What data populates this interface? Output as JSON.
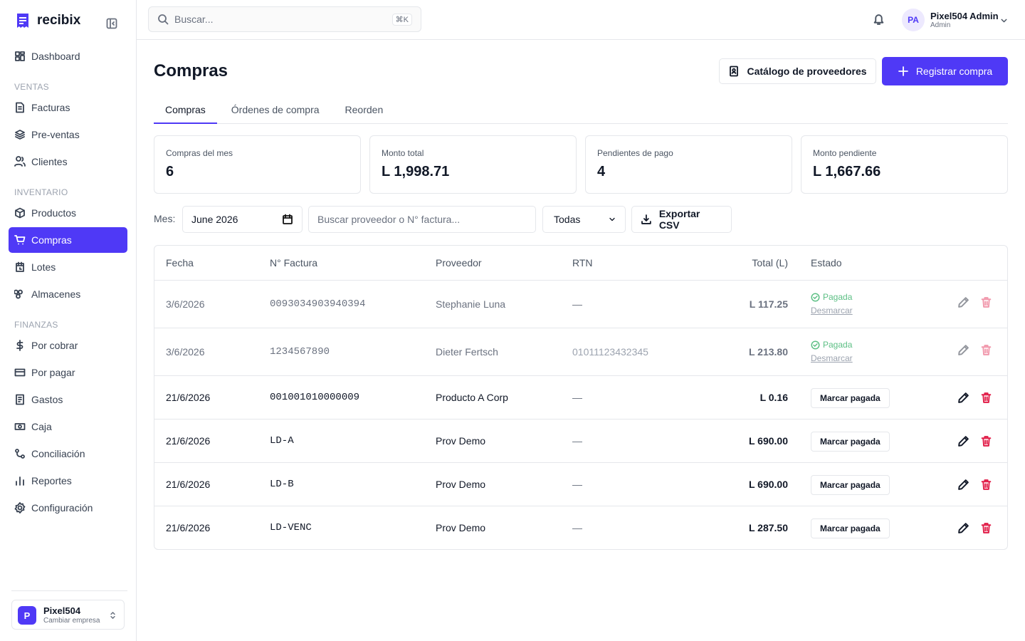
{
  "sidebar": {
    "brand": "recibix",
    "home": "Dashboard",
    "groups": [
      {
        "label": "VENTAS",
        "items": [
          {
            "label": "Facturas"
          },
          {
            "label": "Pre-ventas"
          },
          {
            "label": "Clientes"
          }
        ]
      },
      {
        "label": "INVENTARIO",
        "items": [
          {
            "label": "Productos"
          },
          {
            "label": "Compras",
            "active": true
          },
          {
            "label": "Lotes"
          },
          {
            "label": "Almacenes"
          }
        ]
      },
      {
        "label": "FINANZAS",
        "items": [
          {
            "label": "Por cobrar"
          },
          {
            "label": "Por pagar"
          },
          {
            "label": "Gastos"
          },
          {
            "label": "Caja"
          },
          {
            "label": "Conciliación"
          },
          {
            "label": "Reportes"
          },
          {
            "label": "Configuración"
          }
        ]
      }
    ],
    "company": {
      "initial": "P",
      "name": "Pixel504",
      "action": "Cambiar empresa"
    }
  },
  "topbar": {
    "search": "Buscar...",
    "shortcut": "⌘K",
    "user": {
      "initials": "PA",
      "name": "Pixel504 Admin",
      "role": "Admin"
    }
  },
  "header": {
    "title": "Compras",
    "secondary_button": "Catálogo de proveedores",
    "primary_button": "Registrar compra"
  },
  "tabs": [
    {
      "label": "Compras",
      "active": true
    },
    {
      "label": "Órdenes de compra"
    },
    {
      "label": "Reorden"
    }
  ],
  "stats": [
    {
      "label": "Compras del mes",
      "value": "6"
    },
    {
      "label": "Monto total",
      "value": "L 1,998.71"
    },
    {
      "label": "Pendientes de pago",
      "value": "4"
    },
    {
      "label": "Monto pendiente",
      "value": "L 1,667.66"
    }
  ],
  "filters": {
    "month_label": "Mes:",
    "month": "June 2026",
    "search": "Buscar proveedor o N° factura...",
    "status": "Todas",
    "export": "Exportar CSV"
  },
  "table": {
    "columns": [
      "Fecha",
      "N° Factura",
      "Proveedor",
      "RTN",
      "Total (L)",
      "Estado"
    ],
    "rows": [
      {
        "paid": true,
        "cells": [
          "3/6/2026",
          "0093034903940394",
          "Stephanie Luna",
          "—",
          "L 117.25"
        ],
        "status": "Pagada",
        "action": "Desmarcar"
      },
      {
        "paid": true,
        "cells": [
          "3/6/2026",
          "1234567890",
          "Dieter Fertsch",
          "01011123432345",
          "L 213.80"
        ],
        "status": "Pagada",
        "action": "Desmarcar"
      },
      {
        "cells": [
          "21/6/2026",
          "001001010000009",
          "Producto A Corp",
          "—",
          "L 0.16"
        ],
        "action": "Marcar pagada"
      },
      {
        "cells": [
          "21/6/2026",
          "LD-A",
          "Prov Demo",
          "—",
          "L 690.00"
        ],
        "action": "Marcar pagada"
      },
      {
        "cells": [
          "21/6/2026",
          "LD-B",
          "Prov Demo",
          "—",
          "L 690.00"
        ],
        "action": "Marcar pagada"
      },
      {
        "cells": [
          "21/6/2026",
          "LD-VENC",
          "Prov Demo",
          "—",
          "L 287.50"
        ],
        "action": "Marcar pagada"
      }
    ]
  }
}
